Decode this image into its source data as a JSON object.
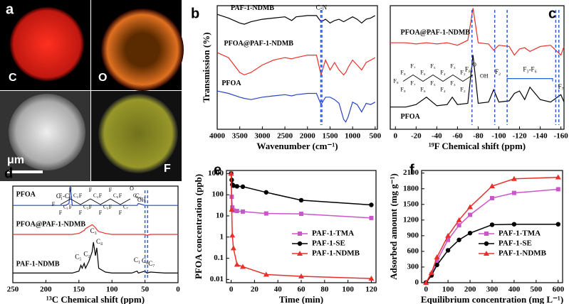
{
  "panel_a": {
    "label": "a",
    "tiles": [
      "C",
      "O",
      "F"
    ],
    "scale_bar": "μm"
  },
  "chart_data": [
    {
      "type": "spectrum",
      "label": "b",
      "xlabel": "Wavenumber (cm⁻¹)",
      "ylabel": "Transmission (%)",
      "xlim": [
        4000,
        450
      ],
      "xticks": [
        4000,
        3500,
        3000,
        2500,
        2000,
        1500,
        1000,
        500
      ],
      "ylim": [
        0,
        10
      ],
      "x": [
        4000,
        3750,
        3500,
        3400,
        3250,
        3000,
        2750,
        2500,
        2350,
        2250,
        2000,
        1800,
        1700,
        1600,
        1500,
        1400,
        1300,
        1200,
        1150,
        1100,
        1000,
        900,
        800,
        700,
        600,
        500
      ],
      "series": [
        {
          "name": "PAF-1-NDMB",
          "color": "#000000",
          "values": [
            9.3,
            9.0,
            8.6,
            8.5,
            8.7,
            8.9,
            9.0,
            9.1,
            8.8,
            9.1,
            9.2,
            9.2,
            8.7,
            8.9,
            8.6,
            8.8,
            8.9,
            8.7,
            8.8,
            8.9,
            9.1,
            8.9,
            8.6,
            8.9,
            9.0,
            9.2
          ]
        },
        {
          "name": "PFOA@PAF-1-NDMB",
          "color": "#e8302a",
          "values": [
            6.2,
            5.8,
            4.6,
            4.4,
            4.6,
            5.2,
            5.6,
            5.8,
            5.7,
            5.8,
            6.0,
            6.0,
            4.4,
            5.6,
            4.8,
            5.4,
            4.8,
            4.4,
            4.6,
            5.0,
            5.6,
            5.2,
            4.8,
            5.4,
            5.6,
            5.8
          ]
        },
        {
          "name": "PFOA",
          "color": "#2a45c0",
          "values": [
            3.1,
            2.9,
            2.6,
            2.5,
            2.4,
            2.6,
            2.7,
            2.8,
            2.7,
            2.8,
            2.9,
            2.9,
            2.0,
            2.6,
            2.6,
            2.4,
            2.1,
            0.8,
            0.6,
            1.0,
            2.2,
            2.0,
            1.4,
            2.1,
            2.0,
            2.2
          ]
        }
      ],
      "markers": [
        1705,
        1680
      ],
      "peak_labels": [
        "C-N"
      ]
    },
    {
      "type": "spectrum",
      "label": "c",
      "xlabel": "¹⁹F Chemical shift (ppm)",
      "xlim": [
        5,
        -163
      ],
      "xticks": [
        0,
        -20,
        -40,
        -60,
        -80,
        -100,
        -120,
        -140,
        -160
      ],
      "ylim": [
        0,
        10
      ],
      "x": [
        5,
        -10,
        -20,
        -30,
        -40,
        -50,
        -55,
        -60,
        -70,
        -75,
        -80,
        -90,
        -95,
        -100,
        -110,
        -115,
        -120,
        -125,
        -130,
        -140,
        -150,
        -160,
        -163
      ],
      "series": [
        {
          "name": "PFOA@PAF-1-NDMB",
          "color": "#e8302a",
          "values": [
            7.0,
            7.0,
            6.9,
            7.0,
            6.9,
            7.0,
            6.9,
            6.8,
            7.2,
            9.8,
            7.0,
            6.9,
            6.4,
            6.8,
            6.7,
            6.0,
            6.5,
            6.6,
            6.3,
            6.7,
            6.8,
            6.0,
            6.7
          ]
        },
        {
          "name": "PFOA",
          "color": "#000000",
          "values": [
            1.8,
            1.8,
            2.0,
            2.6,
            1.9,
            2.0,
            2.6,
            2.0,
            2.1,
            6.0,
            2.1,
            2.2,
            3.2,
            2.2,
            2.3,
            2.9,
            3.1,
            2.4,
            3.4,
            2.4,
            2.2,
            2.8,
            2.2
          ]
        }
      ],
      "markers": [
        -74,
        -96,
        -108,
        -155,
        -158
      ],
      "peak_labels": [
        "F₈",
        "F₂",
        "F₃-F₆",
        "F₇"
      ],
      "structure": {
        "left": "F₈",
        "top": [
          "F₈",
          "F₇",
          "F₆",
          "F₅",
          "F₄",
          "F₃",
          "F₂"
        ],
        "bottom": [
          "F₈",
          "F₇",
          "F₆",
          "F₅",
          "F₄",
          "F₃",
          "F₂"
        ],
        "acid": [
          "O",
          "OH"
        ]
      }
    },
    {
      "type": "spectrum",
      "label": "d",
      "xlabel": "¹³C Chemical shift (ppm)",
      "xlim": [
        250,
        0
      ],
      "xticks": [
        250,
        200,
        150,
        100,
        50,
        0
      ],
      "ylim": [
        0,
        10
      ],
      "x": [
        250,
        200,
        175,
        170,
        165,
        163,
        160,
        150,
        147,
        145,
        142,
        140,
        135,
        130,
        128,
        125,
        123,
        120,
        110,
        100,
        70,
        62,
        60,
        50,
        47,
        42,
        20,
        0
      ],
      "series": [
        {
          "name": "PFOA",
          "color": "#2a45c0",
          "values": [
            8.0,
            8.0,
            8.0,
            8.0,
            8.2,
            10.0,
            8.0,
            8.0,
            8.0,
            8.0,
            8.0,
            8.0,
            8.0,
            8.0,
            8.0,
            8.0,
            8.0,
            8.0,
            8.0,
            8.0,
            8.0,
            8.0,
            8.2,
            8.0,
            8.0,
            8.0,
            8.0,
            8.0
          ]
        },
        {
          "name": "PFOA@PAF-1-NDMB",
          "color": "#e8302a",
          "values": [
            5.0,
            5.0,
            5.0,
            5.0,
            5.0,
            5.0,
            5.0,
            5.1,
            5.2,
            5.3,
            5.4,
            5.6,
            5.8,
            6.0,
            5.9,
            5.7,
            5.5,
            5.3,
            5.1,
            5.0,
            5.0,
            5.0,
            5.0,
            5.0,
            4.9,
            5.0,
            5.0,
            5.0
          ]
        },
        {
          "name": "PAF-1-NDMB",
          "color": "#000000",
          "values": [
            1.0,
            1.0,
            1.0,
            1.0,
            1.0,
            1.0,
            1.0,
            1.2,
            1.8,
            1.5,
            2.0,
            1.5,
            2.2,
            3.2,
            4.2,
            2.8,
            3.6,
            1.5,
            1.1,
            1.0,
            1.0,
            1.2,
            1.0,
            1.2,
            1.0,
            1.1,
            1.0,
            1.0
          ]
        }
      ],
      "markers": [
        50,
        46
      ],
      "peak_labels": [
        "C₁-C₇",
        "C₈",
        "C₅",
        "C₂",
        "C₃",
        "C₄",
        "C₁",
        "C₆",
        "C₇"
      ],
      "structure": {
        "left": "F",
        "top": [
          "F",
          "F",
          "F",
          "F",
          "F",
          "F",
          "F"
        ],
        "bottom": [
          "F",
          "F",
          "F",
          "F",
          "F",
          "F",
          "F"
        ],
        "carbons": [
          "C₁",
          "C₂",
          "C₃",
          "C₄",
          "C₅",
          "C₆",
          "C₇",
          "C₈"
        ],
        "acid": [
          "O",
          "OH"
        ]
      }
    },
    {
      "type": "line",
      "label": "e",
      "xlabel": "Time (min)",
      "ylabel": "PFOA concentration (ppb)",
      "log_y": true,
      "xlim": [
        -4,
        124
      ],
      "xticks": [
        0,
        20,
        40,
        60,
        80,
        100,
        120
      ],
      "ylim": [
        0.007,
        1400
      ],
      "yticks": [
        0.01,
        0.1,
        1,
        10,
        100,
        1000
      ],
      "x": [
        0,
        0.5,
        1,
        2,
        5,
        10,
        30,
        60,
        120
      ],
      "legend": "right",
      "series": [
        {
          "name": "PAF-1-TMA",
          "color": "#cc55cc",
          "marker": "square",
          "values": [
            1000,
            80,
            25,
            18,
            17,
            16,
            13,
            12.5,
            8
          ]
        },
        {
          "name": "PAF-1-SE",
          "color": "#000000",
          "marker": "circle",
          "values": [
            1000,
            500,
            300,
            270,
            250,
            240,
            130,
            55,
            33
          ]
        },
        {
          "name": "PAF-1-NDMB",
          "color": "#e8302a",
          "marker": "triangle",
          "values": [
            1000,
            20,
            1.2,
            0.3,
            0.05,
            0.04,
            0.017,
            0.014,
            0.011
          ]
        }
      ]
    },
    {
      "type": "line",
      "label": "f",
      "xlabel": "Equilibrium concentration (mg L⁻¹)",
      "ylabel": "Adsorbed amount (mg g⁻¹)",
      "xlim": [
        -20,
        620
      ],
      "xticks": [
        0,
        100,
        200,
        300,
        400,
        500,
        600
      ],
      "ylim": [
        0,
        2150
      ],
      "yticks": [
        0,
        300,
        600,
        900,
        1200,
        1500,
        1800,
        2100
      ],
      "x": [
        0,
        25,
        50,
        100,
        150,
        200,
        300,
        400,
        600
      ],
      "legend": "right",
      "series": [
        {
          "name": "PAF-1-TMA",
          "color": "#cc55cc",
          "marker": "square",
          "values": [
            0,
            160,
            420,
            820,
            1100,
            1300,
            1620,
            1720,
            1790
          ]
        },
        {
          "name": "PAF-1-SE",
          "color": "#000000",
          "marker": "circle",
          "values": [
            0,
            140,
            340,
            620,
            820,
            950,
            1110,
            1120,
            1120
          ]
        },
        {
          "name": "PAF-1-NDMB",
          "color": "#e8302a",
          "marker": "triangle",
          "values": [
            0,
            190,
            490,
            900,
            1200,
            1450,
            1850,
            1990,
            2020
          ]
        }
      ]
    }
  ]
}
